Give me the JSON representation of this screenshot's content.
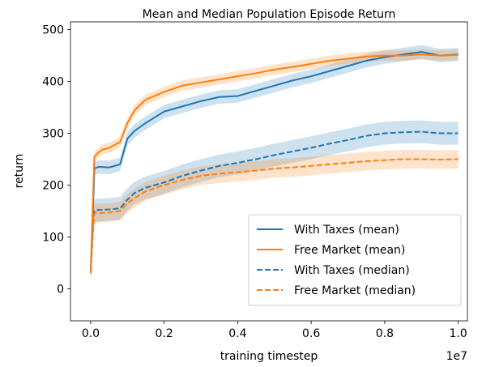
{
  "chart_data": {
    "type": "line",
    "title": "Mean and Median Population Episode Return",
    "xlabel": "training timestep",
    "ylabel": "return",
    "x_multiplier_label": "1e7",
    "xlim": [
      -0.055,
      1.025
    ],
    "ylim": [
      -62,
      515
    ],
    "x_ticks": [
      0.0,
      0.2,
      0.4,
      0.6,
      0.8,
      1.0
    ],
    "x_tick_labels": [
      "0.0",
      "0.2",
      "0.4",
      "0.6",
      "0.8",
      "1.0"
    ],
    "y_ticks": [
      0,
      100,
      200,
      300,
      400,
      500
    ],
    "y_tick_labels": [
      "0",
      "100",
      "200",
      "300",
      "400",
      "500"
    ],
    "grid": false,
    "legend_position": "lower-right",
    "x": [
      0.0,
      0.005,
      0.01,
      0.02,
      0.03,
      0.05,
      0.08,
      0.1,
      0.12,
      0.15,
      0.2,
      0.25,
      0.3,
      0.35,
      0.4,
      0.45,
      0.5,
      0.55,
      0.6,
      0.65,
      0.7,
      0.75,
      0.8,
      0.85,
      0.9,
      0.95,
      1.0
    ],
    "series": [
      {
        "name": "With Taxes (mean)",
        "color": "#1f77b4",
        "dash": "solid",
        "values": [
          30,
          120,
          232,
          235,
          235,
          234,
          240,
          290,
          305,
          320,
          342,
          352,
          362,
          370,
          372,
          382,
          392,
          402,
          410,
          420,
          430,
          440,
          447,
          452,
          457,
          450,
          452
        ],
        "band": 13
      },
      {
        "name": "Free Market (mean)",
        "color": "#ff7f0e",
        "dash": "solid",
        "values": [
          30,
          150,
          255,
          262,
          268,
          272,
          283,
          320,
          345,
          365,
          380,
          392,
          398,
          404,
          410,
          416,
          423,
          428,
          434,
          440,
          444,
          448,
          450,
          450,
          452,
          450,
          451
        ],
        "band": 10
      },
      {
        "name": "With Taxes (median)",
        "color": "#1f77b4",
        "dash": "dashed",
        "values": [
          30,
          100,
          150,
          152,
          152,
          153,
          155,
          172,
          185,
          195,
          205,
          218,
          228,
          237,
          243,
          250,
          258,
          265,
          272,
          280,
          287,
          295,
          300,
          302,
          303,
          300,
          300
        ],
        "band": 22
      },
      {
        "name": "Free Market (median)",
        "color": "#ff7f0e",
        "dash": "dashed",
        "values": [
          30,
          95,
          145,
          146,
          146,
          147,
          150,
          165,
          175,
          188,
          200,
          210,
          218,
          222,
          225,
          228,
          232,
          234,
          237,
          240,
          243,
          246,
          248,
          250,
          250,
          249,
          250
        ],
        "band": 18
      }
    ]
  }
}
